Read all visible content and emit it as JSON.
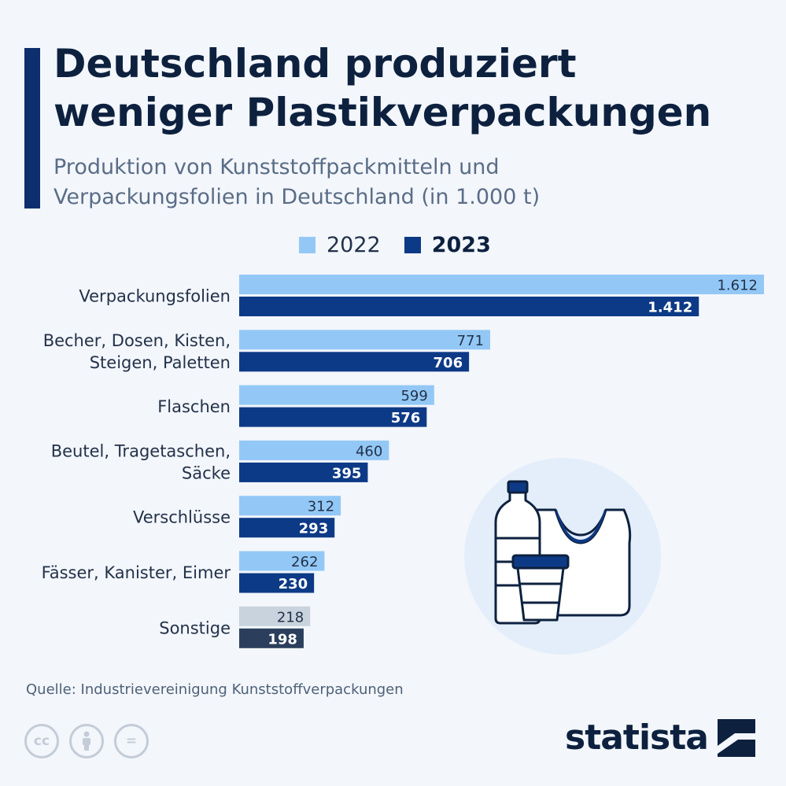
{
  "title_lines": [
    "Deutschland produziert",
    "weniger Plastikverpackungen"
  ],
  "subtitle_lines": [
    "Produktion von Kunststoffpackmitteln und",
    "Verpackungsfolien in Deutschland  (in 1.000 t)"
  ],
  "legend": {
    "a": "2022",
    "b": "2023"
  },
  "colors": {
    "series_2022": "#93c8f6",
    "series_2023": "#0d3a86",
    "other_2022": "#c8d3dd",
    "other_2023": "#2b3f5c",
    "accent": "#0d2f6d"
  },
  "chart_data": {
    "type": "bar",
    "orientation": "horizontal",
    "categories": [
      [
        "Verpackungsfolien"
      ],
      [
        "Becher, Dosen, Kisten,",
        "Steigen, Paletten"
      ],
      [
        "Flaschen"
      ],
      [
        "Beutel, Tragetaschen,",
        "Säcke"
      ],
      [
        "Verschlüsse"
      ],
      [
        "Fässer, Kanister, Eimer"
      ],
      [
        "Sonstige"
      ]
    ],
    "series": [
      {
        "name": "2022",
        "values": [
          1612,
          771,
          599,
          460,
          312,
          262,
          218
        ],
        "labels": [
          "1.612",
          "771",
          "599",
          "460",
          "312",
          "262",
          "218"
        ]
      },
      {
        "name": "2023",
        "values": [
          1412,
          706,
          576,
          395,
          293,
          230,
          198
        ],
        "labels": [
          "1.412",
          "706",
          "576",
          "395",
          "293",
          "230",
          "198"
        ]
      }
    ],
    "xlim": [
      0,
      1612
    ],
    "grid": false,
    "legend_position": "top"
  },
  "source": "Quelle: Industrievereinigung Kunststoffverpackungen",
  "footer": {
    "license_icons": [
      "cc-icon",
      "attribution-icon",
      "no-derivatives-icon"
    ],
    "cc_text": "cc",
    "nd_text": "=",
    "brand": "statista"
  },
  "illustration_icons": [
    "bottle-icon",
    "bag-icon",
    "cup-icon"
  ]
}
